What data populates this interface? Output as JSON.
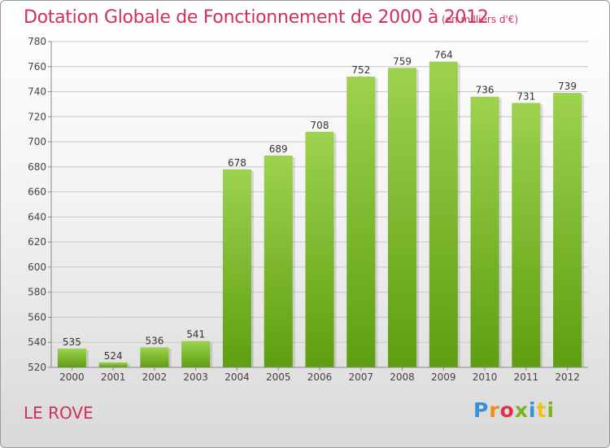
{
  "chart_data": {
    "type": "bar",
    "title": "Dotation Globale de Fonctionnement de 2000 à 2012",
    "unit": "(en milliers d'€)",
    "categories": [
      "2000",
      "2001",
      "2002",
      "2003",
      "2004",
      "2005",
      "2006",
      "2007",
      "2008",
      "2009",
      "2010",
      "2011",
      "2012"
    ],
    "values": [
      535,
      524,
      536,
      541,
      678,
      689,
      708,
      752,
      759,
      764,
      736,
      731,
      739
    ],
    "ylim": [
      520,
      780
    ],
    "yticks": [
      520,
      540,
      560,
      580,
      600,
      620,
      640,
      660,
      680,
      700,
      720,
      740,
      760,
      780
    ],
    "grid": true,
    "bar_color": "#7cc02a"
  },
  "footer": {
    "city": "LE ROVE",
    "logo": "Proxiti"
  }
}
